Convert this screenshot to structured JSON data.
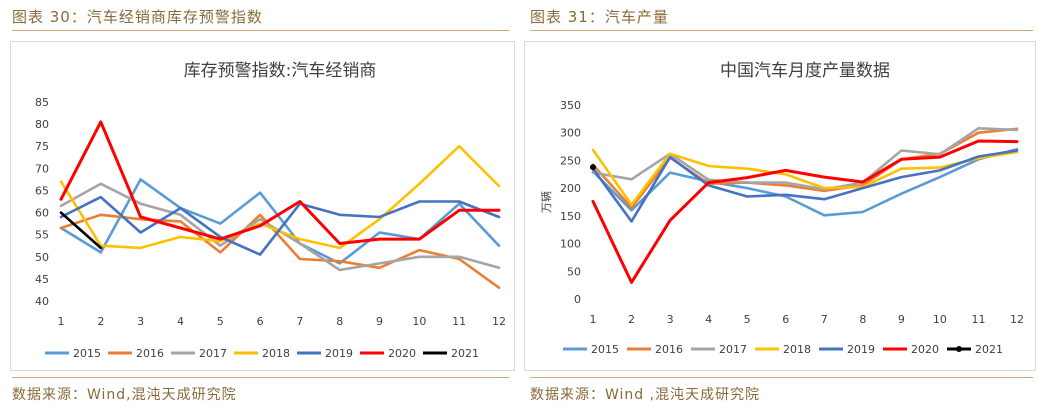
{
  "figures": [
    {
      "caption": "图表 30：汽车经销商库存预警指数",
      "source": "数据来源：Wind,混沌天成研究院"
    },
    {
      "caption": "图表 31：汽车产量",
      "source": "数据来源：Wind ,混沌天成研究院"
    }
  ],
  "chart_data": [
    {
      "type": "line",
      "title": "库存预警指数:汽车经销商",
      "xlabel": "",
      "ylabel": "",
      "ylim": [
        40,
        85
      ],
      "yticks": [
        40,
        45,
        50,
        55,
        60,
        65,
        70,
        75,
        80,
        85
      ],
      "categories": [
        "1",
        "2",
        "3",
        "4",
        "5",
        "6",
        "7",
        "8",
        "9",
        "10",
        "11",
        "12"
      ],
      "grid": false,
      "legend_position": "bottom",
      "series": [
        {
          "name": "2015",
          "color": "#5b9bd5",
          "values": [
            56.5,
            51,
            67.5,
            61,
            57.5,
            64.5,
            53,
            48.5,
            55.5,
            54,
            62,
            52.5
          ]
        },
        {
          "name": "2016",
          "color": "#ed7d31",
          "values": [
            56.5,
            59.5,
            58.5,
            58,
            51,
            59.5,
            49.5,
            49,
            47.5,
            51.5,
            49.5,
            43
          ]
        },
        {
          "name": "2017",
          "color": "#a5a5a5",
          "values": [
            61.5,
            66.5,
            62,
            59.5,
            52.5,
            58.5,
            53,
            47,
            48.5,
            50,
            50,
            47.5
          ]
        },
        {
          "name": "2018",
          "color": "#ffc000",
          "values": [
            67,
            52.5,
            52,
            54.5,
            53.5,
            57.5,
            54,
            52,
            58.5,
            66.5,
            75,
            66
          ]
        },
        {
          "name": "2019",
          "color": "#4472c4",
          "values": [
            59,
            63.5,
            55.5,
            61,
            54.5,
            50.5,
            62,
            59.5,
            59,
            62.5,
            62.5,
            59
          ]
        },
        {
          "name": "2020",
          "color": "#ff0000",
          "values": [
            63,
            80.5,
            59,
            56.5,
            54,
            57,
            62.5,
            53,
            54,
            54,
            60.5,
            60.5
          ]
        },
        {
          "name": "2021",
          "color": "#000000",
          "values": [
            60,
            52,
            null,
            null,
            null,
            null,
            null,
            null,
            null,
            null,
            null,
            null
          ]
        }
      ]
    },
    {
      "type": "line",
      "title": "中国汽车月度产量数据",
      "xlabel": "",
      "ylabel": "万辆",
      "ylim": [
        0,
        350
      ],
      "yticks": [
        0,
        50,
        100,
        150,
        200,
        250,
        300,
        350
      ],
      "categories": [
        "1",
        "2",
        "3",
        "4",
        "5",
        "6",
        "7",
        "8",
        "9",
        "10",
        "11",
        "12"
      ],
      "grid": false,
      "legend_position": "bottom",
      "series": [
        {
          "name": "2015",
          "color": "#5b9bd5",
          "values": [
            230,
            160,
            228,
            212,
            200,
            185,
            151,
            157,
            190,
            220,
            252,
            270
          ]
        },
        {
          "name": "2016",
          "color": "#ed7d31",
          "values": [
            242,
            165,
            255,
            208,
            210,
            205,
            195,
            205,
            252,
            262,
            300,
            307
          ]
        },
        {
          "name": "2017",
          "color": "#a5a5a5",
          "values": [
            228,
            216,
            262,
            215,
            210,
            210,
            198,
            210,
            268,
            261,
            308,
            305
          ]
        },
        {
          "name": "2018",
          "color": "#ffc000",
          "values": [
            269,
            170,
            262,
            240,
            235,
            225,
            200,
            202,
            235,
            237,
            254,
            265
          ]
        },
        {
          "name": "2019",
          "color": "#4472c4",
          "values": [
            235,
            140,
            256,
            205,
            185,
            188,
            180,
            200,
            220,
            232,
            257,
            268
          ]
        },
        {
          "name": "2020",
          "color": "#ff0000",
          "values": [
            176,
            30,
            142,
            210,
            219,
            232,
            220,
            211,
            252,
            256,
            285,
            284
          ]
        },
        {
          "name": "2021",
          "color": "#000000",
          "values": [
            238,
            null,
            null,
            null,
            null,
            null,
            null,
            null,
            null,
            null,
            null,
            null
          ]
        }
      ]
    }
  ]
}
